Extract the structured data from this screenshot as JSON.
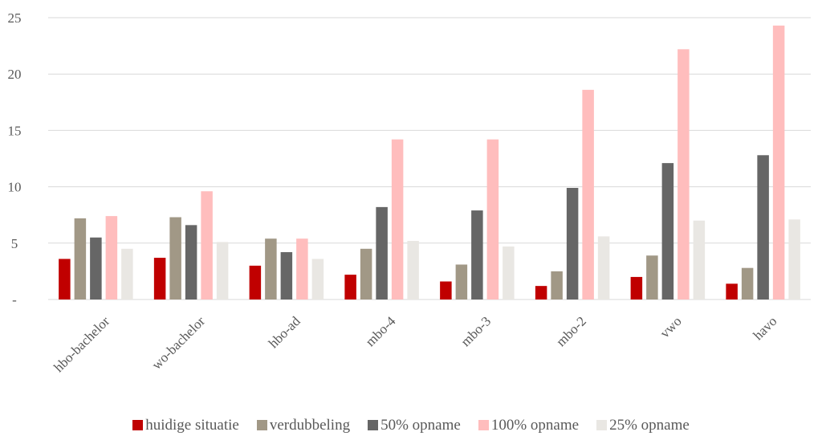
{
  "chart_data": {
    "type": "bar",
    "title": "",
    "xlabel": "",
    "ylabel": "",
    "ylim": [
      0,
      25
    ],
    "yticks": [
      0,
      5,
      10,
      15,
      20,
      25
    ],
    "ytick_labels": [
      "-",
      "5",
      "10",
      "15",
      "20",
      "25"
    ],
    "grid": true,
    "legend_position": "bottom",
    "categories": [
      "hbo-bachelor",
      "wo-bachelor",
      "hbo-ad",
      "mbo-4",
      "mbo-3",
      "mbo-2",
      "vwo",
      "havo"
    ],
    "series": [
      {
        "name": "huidige situatie",
        "color": "#C00000",
        "values": [
          3.6,
          3.7,
          3.0,
          2.2,
          1.6,
          1.2,
          2.0,
          1.4
        ]
      },
      {
        "name": "verdubbeling",
        "color": "#A19886",
        "values": [
          7.2,
          7.3,
          5.4,
          4.5,
          3.1,
          2.5,
          3.9,
          2.8
        ]
      },
      {
        "name": "50% opname",
        "color": "#666666",
        "values": [
          5.5,
          6.6,
          4.2,
          8.2,
          7.9,
          9.9,
          12.1,
          12.8
        ]
      },
      {
        "name": "100% opname",
        "color": "#FFBDBD",
        "values": [
          7.4,
          9.6,
          5.4,
          14.2,
          14.2,
          18.6,
          22.2,
          24.3
        ]
      },
      {
        "name": "25% opname",
        "color": "#E9E7E3",
        "values": [
          4.5,
          5.1,
          3.6,
          5.2,
          4.7,
          5.6,
          7.0,
          7.1
        ]
      }
    ]
  }
}
